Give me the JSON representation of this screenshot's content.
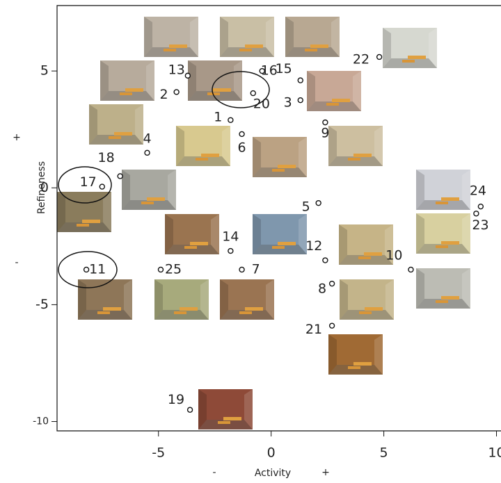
{
  "chart_data": {
    "type": "scatter",
    "xlabel": "Activity",
    "ylabel": "Refineness",
    "annotations": [
      "-",
      "+",
      "+",
      "-"
    ],
    "labels": [
      "1",
      "2",
      "3",
      "4",
      "5",
      "6",
      "7",
      "8",
      "9",
      "10",
      "11",
      "12",
      "13",
      "14",
      "15",
      "16",
      "17",
      "18",
      "19",
      "20",
      "21",
      "22",
      "23",
      "24",
      "25"
    ],
    "x": [
      -1.8,
      -4.2,
      1.3,
      -5.5,
      2.1,
      -1.3,
      -1.3,
      2.7,
      2.4,
      6.2,
      -8.2,
      2.4,
      -3.7,
      -1.8,
      1.3,
      -0.4,
      -7.5,
      -6.7,
      -3.6,
      -0.8,
      2.7,
      4.8,
      9.1,
      9.3,
      -4.9
    ],
    "y": [
      2.9,
      4.1,
      3.75,
      1.5,
      -0.65,
      2.3,
      -3.5,
      -4.1,
      2.8,
      -3.5,
      -3.5,
      -3.1,
      4.8,
      -2.7,
      4.6,
      5.0,
      0.05,
      0.5,
      -9.5,
      4.05,
      -5.9,
      5.6,
      -1.1,
      -0.8,
      -3.5
    ],
    "xlim": [
      -9.5,
      10.2
    ],
    "ylim": [
      -10.4,
      7.8
    ],
    "xticks": [
      -5,
      0,
      5,
      10
    ],
    "yticks": [
      -10,
      -5,
      0,
      5
    ]
  }
}
